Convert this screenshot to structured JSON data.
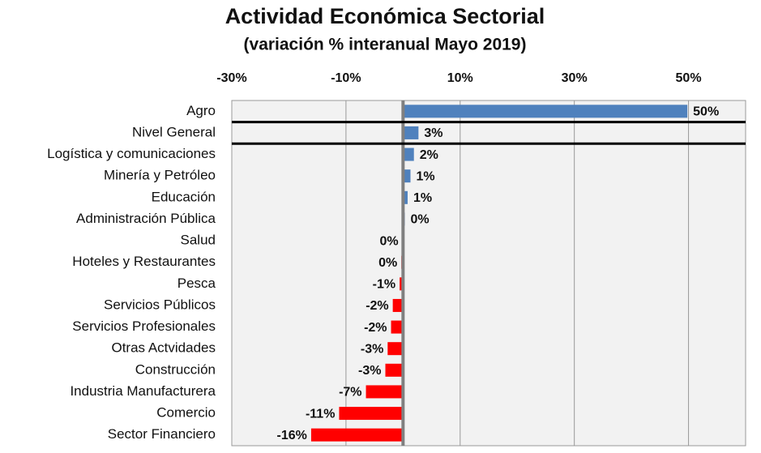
{
  "chart_data": {
    "type": "hbar",
    "title": "Actividad  Económica Sectorial",
    "subtitle": "(variación % interanual Mayo 2019)",
    "categories": [
      "Agro",
      "Nivel General",
      "Logística y comunicaciones",
      "Minería y Petróleo",
      "Educación",
      "Administración Pública",
      "Salud",
      "Hoteles y Restaurantes",
      "Pesca",
      "Servicios Públicos",
      "Servicios Profesionales",
      "Otras Actvidades",
      "Construcción",
      "Industria Manufacturera",
      "Comercio",
      "Sector Financiero"
    ],
    "values": [
      49.8,
      2.7,
      1.9,
      1.3,
      0.8,
      0.3,
      -0.1,
      -0.3,
      -0.6,
      -1.8,
      -2.1,
      -2.7,
      -3.1,
      -6.5,
      -11.2,
      -16.1
    ],
    "value_labels": [
      "50%",
      "3%",
      "2%",
      "1%",
      "1%",
      "0%",
      "0%",
      "0%",
      "-1%",
      "-2%",
      "-2%",
      "-3%",
      "-3%",
      "-7%",
      "-11%",
      "-16%"
    ],
    "positive_color": "#4f81bd",
    "negative_color": "#ff0000",
    "xlim": [
      -30,
      60
    ],
    "xticks": [
      {
        "value": -30,
        "label": "-30%"
      },
      {
        "value": -10,
        "label": "-10%"
      },
      {
        "value": 10,
        "label": "10%"
      },
      {
        "value": 30,
        "label": "30%"
      },
      {
        "value": 50,
        "label": "50%"
      }
    ],
    "grid": true
  }
}
